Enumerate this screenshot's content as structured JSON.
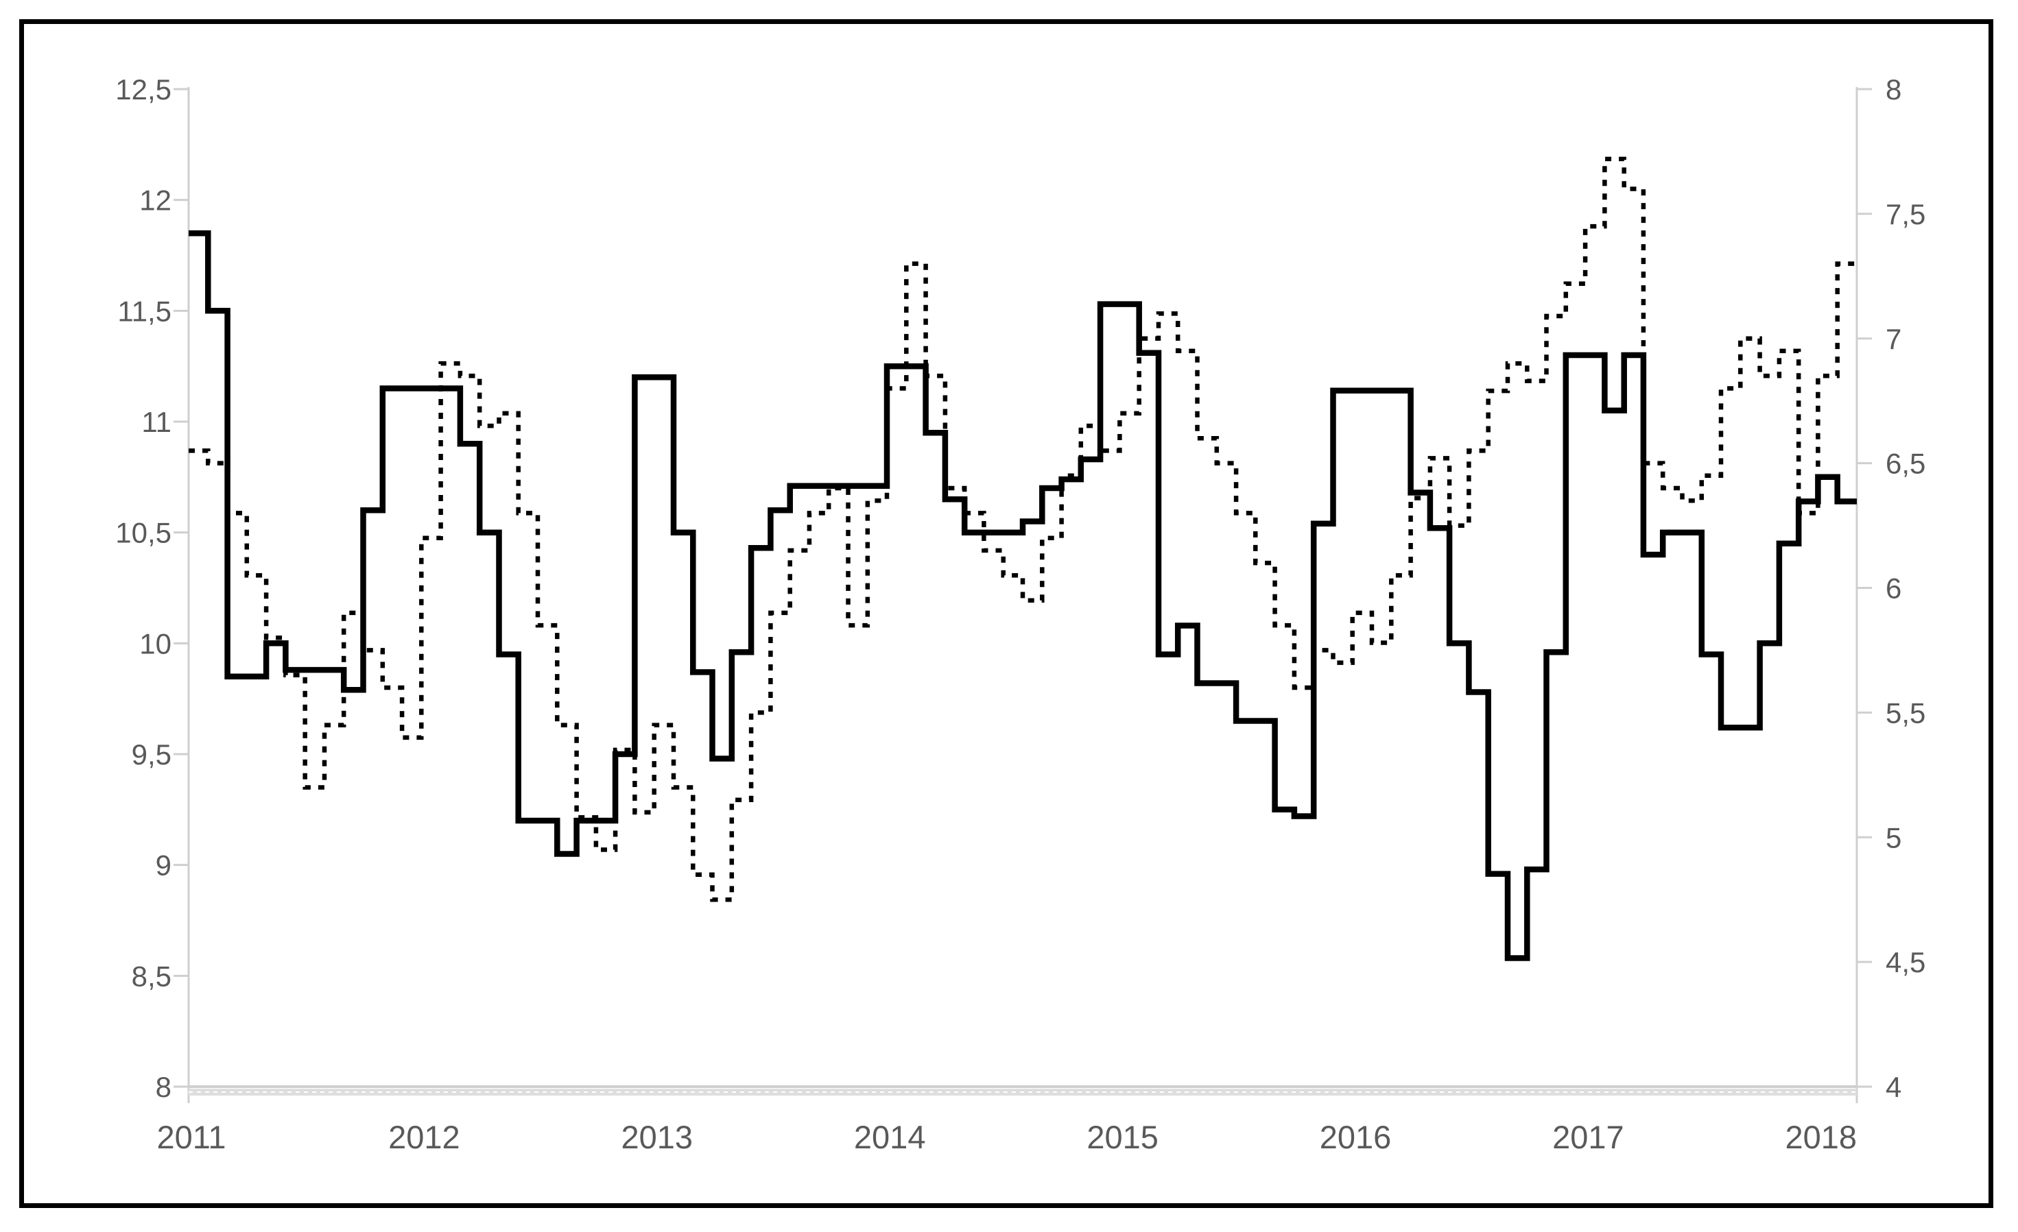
{
  "frame": {
    "border_color": "#000000",
    "background": "#ffffff"
  },
  "colors": {
    "series_line": "#000000",
    "axis_line": "#cfcfcf",
    "axis_band": "#dedede",
    "tick_label": "#595959"
  },
  "chart_data": {
    "type": "line",
    "title": "",
    "xlabel": "",
    "ylabel_left": "",
    "ylabel_right": "",
    "grid": "off",
    "legend": "none",
    "x_year_labels": [
      "2011",
      "2012",
      "2013",
      "2014",
      "2015",
      "2016",
      "2017",
      "2018"
    ],
    "left_axis": {
      "min": 8,
      "max": 12.5,
      "step": 0.5,
      "tick_labels": [
        "12,5",
        "12",
        "11,5",
        "11",
        "10,5",
        "10",
        "9,5",
        "9",
        "8,5",
        "8"
      ]
    },
    "right_axis": {
      "min": 4,
      "max": 8,
      "step": 0.5,
      "tick_labels": [
        "8",
        "7,5",
        "7",
        "6,5",
        "6",
        "5,5",
        "5",
        "4,5",
        "4"
      ]
    },
    "x": [
      "2011-01",
      "2011-02",
      "2011-03",
      "2011-04",
      "2011-05",
      "2011-06",
      "2011-07",
      "2011-08",
      "2011-09",
      "2011-10",
      "2011-11",
      "2011-12",
      "2012-01",
      "2012-02",
      "2012-03",
      "2012-04",
      "2012-05",
      "2012-06",
      "2012-07",
      "2012-08",
      "2012-09",
      "2012-10",
      "2012-11",
      "2012-12",
      "2013-01",
      "2013-02",
      "2013-03",
      "2013-04",
      "2013-05",
      "2013-06",
      "2013-07",
      "2013-08",
      "2013-09",
      "2013-10",
      "2013-11",
      "2013-12",
      "2014-01",
      "2014-02",
      "2014-03",
      "2014-04",
      "2014-05",
      "2014-06",
      "2014-07",
      "2014-08",
      "2014-09",
      "2014-10",
      "2014-11",
      "2014-12",
      "2015-01",
      "2015-02",
      "2015-03",
      "2015-04",
      "2015-05",
      "2015-06",
      "2015-07",
      "2015-08",
      "2015-09",
      "2015-10",
      "2015-11",
      "2015-12",
      "2016-01",
      "2016-02",
      "2016-03",
      "2016-04",
      "2016-05",
      "2016-06",
      "2016-07",
      "2016-08",
      "2016-09",
      "2016-10",
      "2016-11",
      "2016-12",
      "2017-01",
      "2017-02",
      "2017-03",
      "2017-04",
      "2017-05",
      "2017-06",
      "2017-07",
      "2017-08",
      "2017-09",
      "2017-10",
      "2017-11",
      "2017-12",
      "2018-01",
      "2018-02"
    ],
    "series": [
      {
        "name": "solid_line_left_axis",
        "style": "solid",
        "axis": "left",
        "values": [
          11.85,
          11.5,
          9.85,
          9.85,
          10.0,
          9.88,
          9.88,
          9.88,
          9.79,
          10.6,
          11.15,
          11.15,
          11.15,
          11.15,
          10.9,
          10.5,
          9.95,
          9.2,
          9.2,
          9.05,
          9.2,
          9.2,
          9.5,
          11.2,
          11.2,
          10.5,
          9.87,
          9.48,
          9.96,
          10.43,
          10.6,
          10.71,
          10.71,
          10.71,
          10.71,
          10.71,
          11.25,
          11.25,
          10.95,
          10.65,
          10.5,
          10.5,
          10.5,
          10.55,
          10.7,
          10.74,
          10.83,
          11.53,
          11.53,
          11.31,
          9.95,
          10.08,
          9.82,
          9.82,
          9.65,
          9.65,
          9.25,
          9.22,
          10.54,
          11.14,
          11.14,
          11.14,
          11.14,
          10.68,
          10.52,
          10.0,
          9.78,
          8.96,
          8.58,
          8.98,
          9.96,
          11.3,
          11.3,
          11.05,
          11.3,
          10.4,
          10.5,
          10.5,
          9.95,
          9.62,
          9.62,
          10.0,
          10.45,
          10.64,
          10.75,
          10.64
        ]
      },
      {
        "name": "dotted_line_right_axis",
        "style": "dotted",
        "axis": "right",
        "values": [
          6.55,
          6.5,
          6.3,
          6.05,
          5.8,
          5.65,
          5.2,
          5.45,
          5.9,
          5.75,
          5.6,
          5.4,
          6.2,
          6.9,
          6.85,
          6.65,
          6.7,
          6.3,
          5.85,
          5.45,
          5.08,
          4.95,
          5.35,
          5.1,
          5.45,
          5.2,
          4.85,
          4.75,
          5.15,
          5.5,
          5.9,
          6.15,
          6.3,
          6.4,
          5.85,
          6.35,
          6.8,
          7.3,
          6.85,
          6.4,
          6.3,
          6.15,
          6.05,
          5.95,
          6.2,
          6.45,
          6.65,
          6.55,
          6.7,
          7.0,
          7.1,
          6.95,
          6.6,
          6.5,
          6.3,
          6.1,
          5.85,
          5.6,
          5.75,
          5.7,
          5.9,
          5.78,
          6.05,
          6.36,
          6.52,
          6.25,
          6.55,
          6.79,
          6.9,
          6.83,
          7.09,
          7.22,
          7.45,
          7.72,
          7.6,
          6.5,
          6.4,
          6.35,
          6.45,
          6.8,
          7.0,
          6.85,
          6.95,
          6.3,
          6.85,
          7.3
        ]
      }
    ],
    "layout": {
      "plot_left": 268,
      "plot_right": 2700,
      "plot_top": 123,
      "plot_bottom": 1578,
      "tick_len": 22,
      "x_label_y": 1668,
      "x_label_start": 272,
      "x_label_spacing": 339.4,
      "left_label_x": 243,
      "right_label_x": 2742,
      "axis_font_size": 42,
      "year_font_size": 47,
      "solid_width": 8.5,
      "dotted_width": 6.5,
      "dash_pattern": "9 11"
    }
  }
}
